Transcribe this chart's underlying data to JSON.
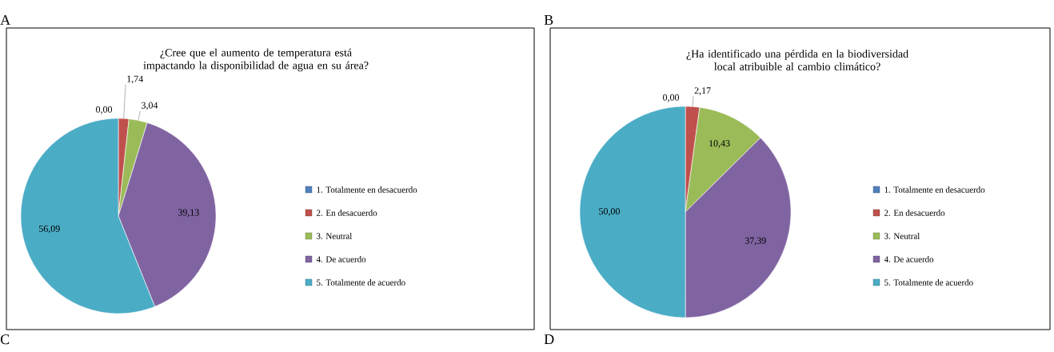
{
  "chart_data": [
    {
      "type": "pie",
      "title": "¿Cree que el aumento de temperatura está impactando la disponibilidad de agua en su área?",
      "categories": [
        "1. Totalmente en desacuerdo",
        "2. En desacuerdo",
        "3. Neutral",
        "4. De acuerdo",
        "5. Totalmente de acuerdo"
      ],
      "values": [
        0.0,
        1.74,
        3.04,
        39.13,
        56.09
      ],
      "colors": [
        "#4f81bd",
        "#c0504d",
        "#9bbb59",
        "#8064a2",
        "#4bacc6"
      ],
      "value_labels": [
        "0,00",
        "1,74",
        "3,04",
        "39,13",
        "56,09"
      ],
      "legend": "right",
      "annotations": [
        "A",
        "C"
      ]
    },
    {
      "type": "pie",
      "title": "¿Ha identificado una pérdida en la biodiversidad local atribuible al cambio climático?",
      "categories": [
        "1. Totalmente en desacuerdo",
        "2. En desacuerdo",
        "3. Neutral",
        "4. De acuerdo",
        "5. Totalmente de acuerdo"
      ],
      "values": [
        0.0,
        2.17,
        10.43,
        37.39,
        50.0
      ],
      "colors": [
        "#4f81bd",
        "#c0504d",
        "#9bbb59",
        "#8064a2",
        "#4bacc6"
      ],
      "value_labels": [
        "0,00",
        "2,17",
        "10,43",
        "37,39",
        "50,00"
      ],
      "legend": "right",
      "annotations": [
        "B",
        "D"
      ]
    }
  ]
}
